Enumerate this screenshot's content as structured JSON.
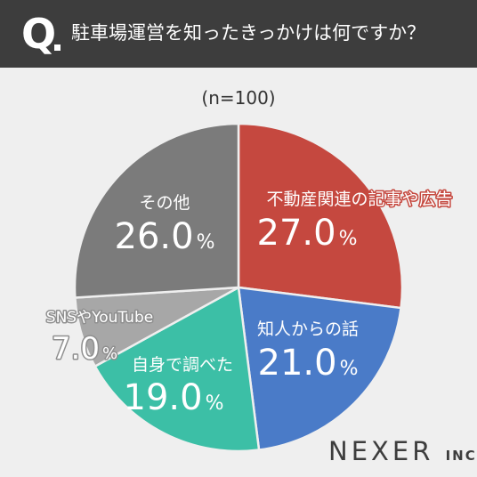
{
  "header": {
    "q_mark": "Q",
    "question": "駐車場運営を知ったきっかけは何ですか？"
  },
  "sample": "(n=100)",
  "brand": {
    "name": "NEXER",
    "suffix": "INC."
  },
  "colors": {
    "header_bg": "#3d3d3d",
    "background": "#efefef"
  },
  "chart_data": {
    "type": "pie",
    "title": "駐車場運営を知ったきっかけは何ですか？",
    "start_angle_deg": 0,
    "direction": "clockwise",
    "slices": [
      {
        "label": "不動産関連の記事や広告",
        "value": 27.0,
        "display": "27.0",
        "color": "#c5483f"
      },
      {
        "label": "知人からの話",
        "value": 21.0,
        "display": "21.0",
        "color": "#4a7bc8"
      },
      {
        "label": "自身で調べた",
        "value": 19.0,
        "display": "19.0",
        "color": "#3cbfa6"
      },
      {
        "label": "SNSやYouTube",
        "value": 7.0,
        "display": "7.0",
        "color": "#a7a7a7"
      },
      {
        "label": "その他",
        "value": 26.0,
        "display": "26.0",
        "color": "#7b7b7b"
      }
    ],
    "unit": "%"
  }
}
